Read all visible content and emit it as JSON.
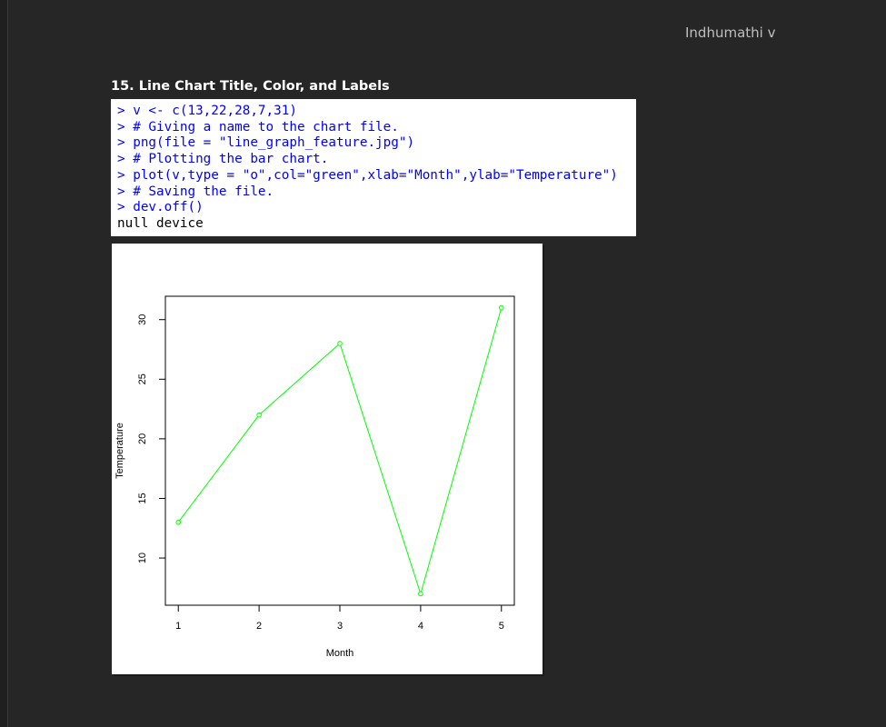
{
  "header": {
    "author": "Indhumathi v",
    "title": "15. Line Chart Title, Color, and Labels"
  },
  "console": {
    "lines": [
      {
        "type": "cmd",
        "text": "> v <- c(13,22,28,7,31)"
      },
      {
        "type": "cmd",
        "text": "> # Giving a name to the chart file."
      },
      {
        "type": "cmd",
        "text": "> png(file = \"line_graph_feature.jpg\")"
      },
      {
        "type": "cmd",
        "text": "> # Plotting the bar chart."
      },
      {
        "type": "cmd",
        "text": "> plot(v,type = \"o\",col=\"green\",xlab=\"Month\",ylab=\"Temperature\")"
      },
      {
        "type": "cmd",
        "text": "> # Saving the file."
      },
      {
        "type": "cmd",
        "text": "> dev.off()"
      },
      {
        "type": "out",
        "text": "null device"
      }
    ]
  },
  "chart_data": {
    "type": "line",
    "x": [
      1,
      2,
      3,
      4,
      5
    ],
    "values": [
      13,
      22,
      28,
      7,
      31
    ],
    "title": "",
    "xlabel": "Month",
    "ylabel": "Temperature",
    "xlim": [
      0.84,
      5.16
    ],
    "ylim": [
      6.04,
      31.96
    ],
    "xticks": [
      "1",
      "2",
      "3",
      "4",
      "5"
    ],
    "yticks": [
      "10",
      "15",
      "20",
      "25",
      "30"
    ],
    "series_color": "#00ff00",
    "marker": "open-circle",
    "grid": false,
    "legend": "none"
  }
}
